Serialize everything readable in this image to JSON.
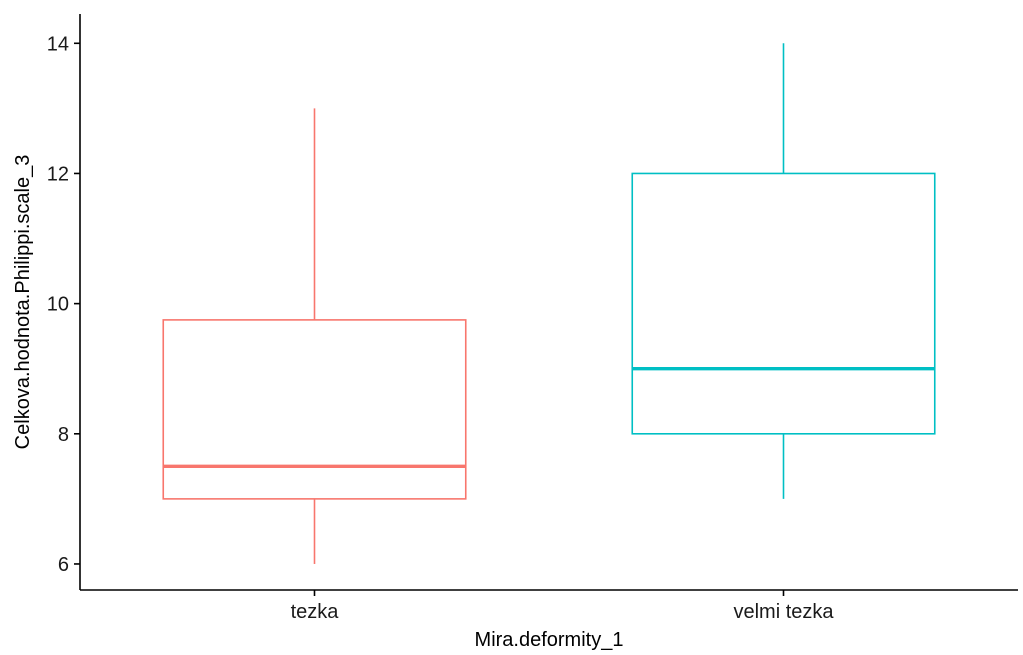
{
  "chart_data": {
    "type": "boxplot",
    "xlabel": "Mira.deformity_1",
    "ylabel": "Celkova.hodnota.Philippi.scale_3",
    "categories": [
      "tezka",
      "velmi tezka"
    ],
    "colors": [
      "#F8766D",
      "#00BFC4"
    ],
    "ylim": [
      5.6,
      14.45
    ],
    "yticks": [
      6,
      8,
      10,
      12,
      14
    ],
    "grid": false,
    "legend": "none",
    "boxes": [
      {
        "category": "tezka",
        "min": 6,
        "q1": 7,
        "median": 7.5,
        "q3": 9.75,
        "max": 13
      },
      {
        "category": "velmi tezka",
        "min": 7,
        "q1": 8,
        "median": 9,
        "q3": 12,
        "max": 14
      }
    ]
  }
}
